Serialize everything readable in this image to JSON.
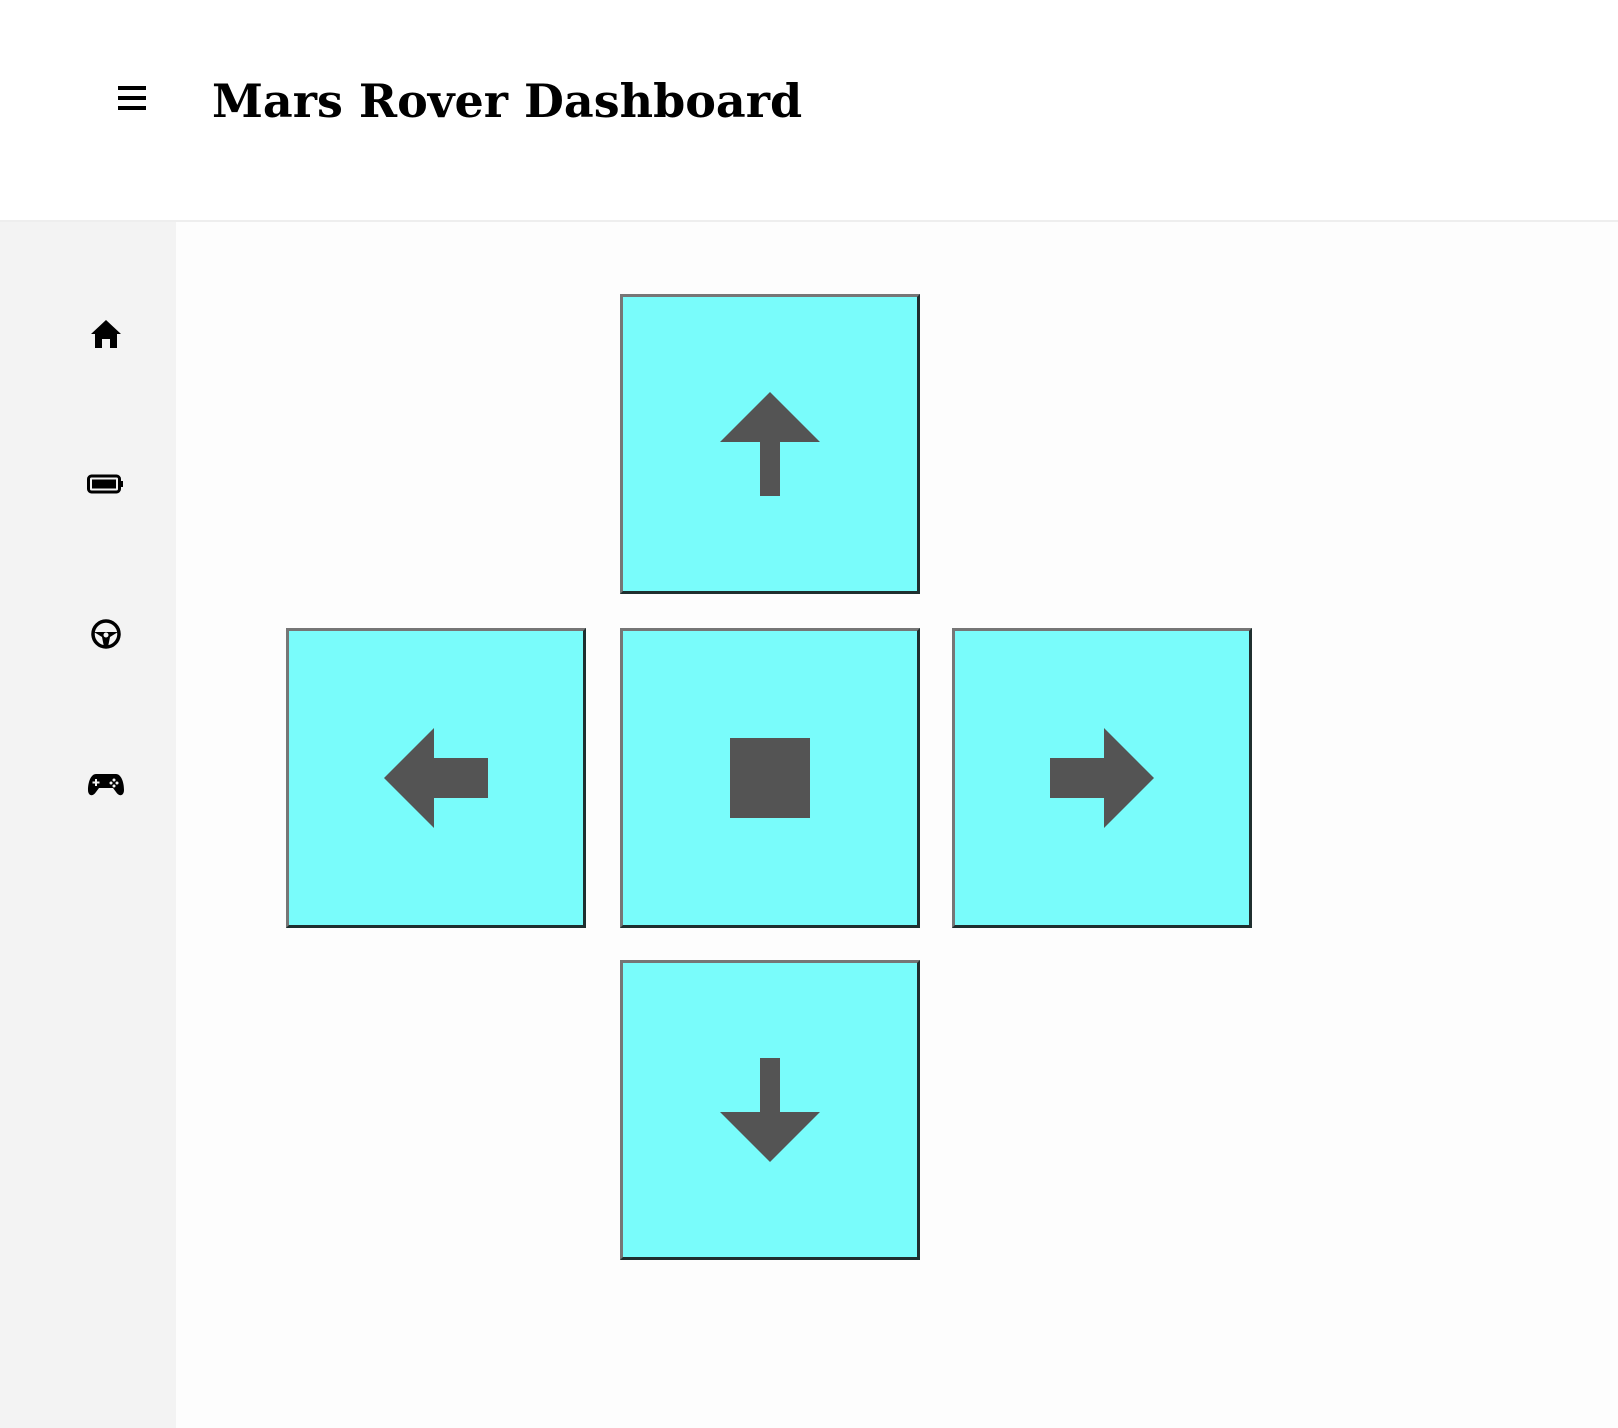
{
  "header": {
    "title": "Mars Rover Dashboard",
    "menu_icon": "hamburger-menu-icon"
  },
  "sidebar": {
    "items": [
      {
        "id": "home",
        "icon": "home-icon"
      },
      {
        "id": "battery",
        "icon": "battery-icon"
      },
      {
        "id": "drive",
        "icon": "steering-wheel-icon"
      },
      {
        "id": "controller",
        "icon": "gamepad-icon"
      }
    ]
  },
  "controls": {
    "buttons": [
      {
        "id": "forward",
        "icon": "arrow-up-icon"
      },
      {
        "id": "left",
        "icon": "arrow-left-icon"
      },
      {
        "id": "stop",
        "icon": "stop-icon"
      },
      {
        "id": "right",
        "icon": "arrow-right-icon"
      },
      {
        "id": "backward",
        "icon": "arrow-down-icon"
      }
    ]
  },
  "colors": {
    "button_fill": "#79fcfb",
    "icon_fill": "#545454",
    "sidebar_bg": "#f3f3f3",
    "header_bg": "#ffffff"
  }
}
